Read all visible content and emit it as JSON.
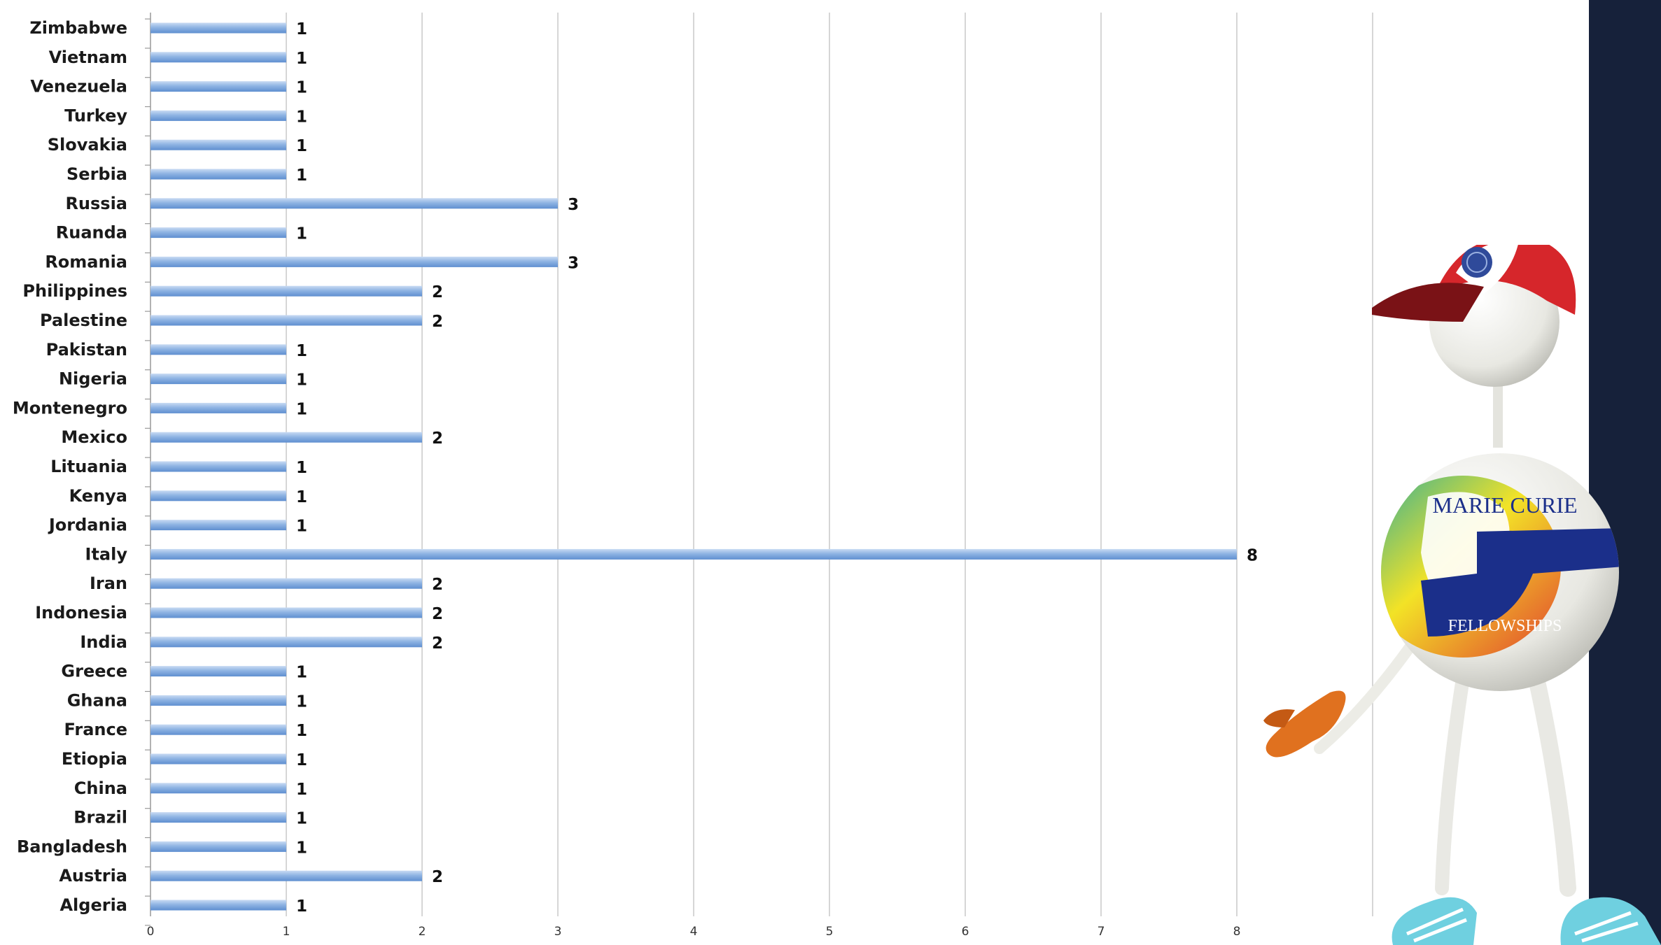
{
  "colors": {
    "bar_light": "#c9dbf3",
    "bar_mid": "#8fb4e3",
    "bar_dark": "#5f8fd0",
    "grid": "#c8c8c8",
    "panel": "#16213a",
    "mascot_body": "#f2f2ee",
    "cap_red": "#d6262b",
    "mitten": "#e0711f",
    "shoe": "#6fd0e0"
  },
  "logo": {
    "line1": "MARIE CURIE",
    "line2": "FELLOWSHIPS",
    "icons": [
      "mascot-figure",
      "cap-icon",
      "globe-logo-icon",
      "mitten-icon",
      "shoe-icon"
    ]
  },
  "chart_data": {
    "type": "bar",
    "orientation": "horizontal",
    "categories": [
      "Zimbabwe",
      "Vietnam",
      "Venezuela",
      "Turkey",
      "Slovakia",
      "Serbia",
      "Russia",
      "Ruanda",
      "Romania",
      "Philippines",
      "Palestine",
      "Pakistan",
      "Nigeria",
      "Montenegro",
      "Mexico",
      "Lituania",
      "Kenya",
      "Jordania",
      "Italy",
      "Iran",
      "Indonesia",
      "India",
      "Greece",
      "Ghana",
      "France",
      "Etiopia",
      "China",
      "Brazil",
      "Bangladesh",
      "Austria",
      "Algeria"
    ],
    "values": [
      1,
      1,
      1,
      1,
      1,
      1,
      3,
      1,
      3,
      2,
      2,
      1,
      1,
      1,
      2,
      1,
      1,
      1,
      8,
      2,
      2,
      2,
      1,
      1,
      1,
      1,
      1,
      1,
      1,
      2,
      1
    ],
    "value_labels": [
      "1",
      "1",
      "1",
      "1",
      "1",
      "1",
      "3",
      "1",
      "3",
      "2",
      "2",
      "1",
      "1",
      "1",
      "2",
      "1",
      "1",
      "1",
      "8",
      "2",
      "2",
      "2",
      "1",
      "1",
      "1",
      "1",
      "1",
      "1",
      "1",
      "2",
      "1"
    ],
    "x_ticks": [
      0,
      1,
      2,
      3,
      4,
      5,
      6,
      7,
      8
    ],
    "x_tick_labels": [
      "0",
      "1",
      "2",
      "3",
      "4",
      "5",
      "6",
      "7",
      "8"
    ],
    "xlim": [
      0,
      9
    ],
    "grid": "vertical",
    "title": "",
    "xlabel": "",
    "ylabel": ""
  }
}
